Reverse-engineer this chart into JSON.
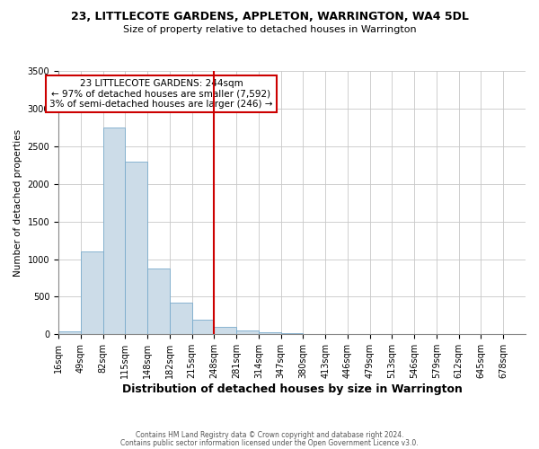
{
  "title": "23, LITTLECOTE GARDENS, APPLETON, WARRINGTON, WA4 5DL",
  "subtitle": "Size of property relative to detached houses in Warrington",
  "xlabel": "Distribution of detached houses by size in Warrington",
  "ylabel": "Number of detached properties",
  "bar_heights": [
    40,
    1100,
    2750,
    2300,
    880,
    420,
    190,
    100,
    50,
    30,
    15,
    0,
    0,
    0,
    0,
    0,
    0,
    0,
    0,
    0,
    0
  ],
  "bin_labels": [
    "16sqm",
    "49sqm",
    "82sqm",
    "115sqm",
    "148sqm",
    "182sqm",
    "215sqm",
    "248sqm",
    "281sqm",
    "314sqm",
    "347sqm",
    "380sqm",
    "413sqm",
    "446sqm",
    "479sqm",
    "513sqm",
    "546sqm",
    "579sqm",
    "612sqm",
    "645sqm",
    "678sqm"
  ],
  "bar_color": "#ccdce8",
  "bar_edge_color": "#7aabcc",
  "vline_x_index": 7,
  "vline_color": "#cc0000",
  "vline_lw": 1.5,
  "annotation_title": "23 LITTLECOTE GARDENS: 244sqm",
  "annotation_line1": "← 97% of detached houses are smaller (7,592)",
  "annotation_line2": "3% of semi-detached houses are larger (246) →",
  "annotation_box_color": "#ffffff",
  "annotation_box_edge": "#cc0000",
  "ylim": [
    0,
    3500
  ],
  "yticks": [
    0,
    500,
    1000,
    1500,
    2000,
    2500,
    3000,
    3500
  ],
  "footer1": "Contains HM Land Registry data © Crown copyright and database right 2024.",
  "footer2": "Contains public sector information licensed under the Open Government Licence v3.0.",
  "bg_color": "#ffffff",
  "grid_color": "#c8c8c8",
  "title_fontsize": 9,
  "subtitle_fontsize": 8,
  "xlabel_fontsize": 9,
  "ylabel_fontsize": 7.5,
  "tick_fontsize": 7,
  "footer_fontsize": 5.5
}
